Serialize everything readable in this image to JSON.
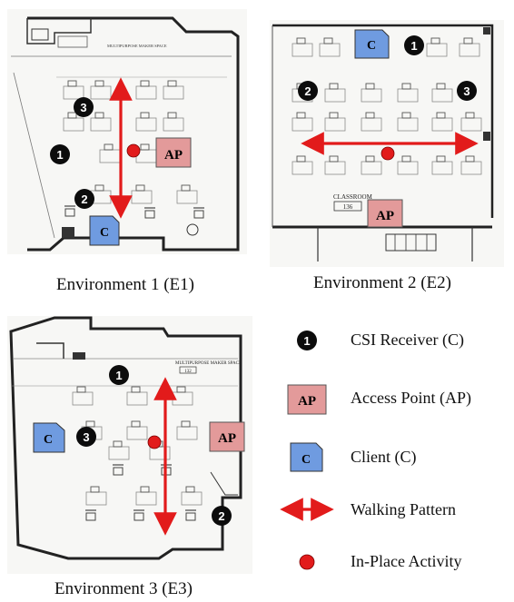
{
  "environments": [
    {
      "caption": "Environment 1 (E1)",
      "room_label": "MULTIPURPOSE MAKER SPACE",
      "room_number": "",
      "receivers": [
        "1",
        "2",
        "3"
      ],
      "access_point": "AP",
      "client": "C"
    },
    {
      "caption": "Environment 2 (E2)",
      "room_label": "CLASSROOM",
      "room_number": "136",
      "receivers": [
        "1",
        "2",
        "3"
      ],
      "access_point": "AP",
      "client": "C"
    },
    {
      "caption": "Environment 3 (E3)",
      "room_label": "MULTIPURPOSE MAKER SPACE",
      "room_number": "132",
      "receivers": [
        "1",
        "2",
        "3"
      ],
      "access_point": "AP",
      "client": "C"
    }
  ],
  "legend": {
    "csi_symbol": "1",
    "csi_label": "CSI Receiver (C)",
    "ap_symbol": "AP",
    "ap_label": "Access Point (AP)",
    "client_symbol": "C",
    "client_label": "Client (C)",
    "walk_label": "Walking Pattern",
    "activity_label": "In-Place Activity"
  },
  "colors": {
    "ap_fill": "#e39a9a",
    "client_fill": "#6f9be0",
    "marker_red": "#e21b1b",
    "receiver_black": "#0c0c0c"
  }
}
